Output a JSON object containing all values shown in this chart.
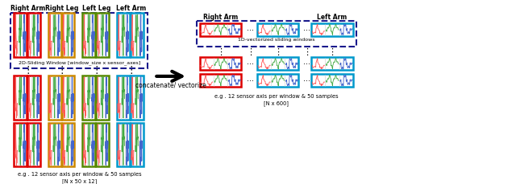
{
  "bg_color": "#ffffff",
  "left_labels": [
    "Right Arm",
    "Right Leg",
    "Left Leg",
    "Left Arm"
  ],
  "right_labels": [
    "Right Arm",
    "Left Arm"
  ],
  "arrow_text": "concatenate/ vectorize",
  "left_note1": "2D-Sliding Window [window_size x sensor_axes]",
  "left_note2": "e.g . 12 sensor axis per window & 50 samples",
  "left_note3": "[N x 50 x 12]",
  "right_note1": "1D-vectorized sliding windows",
  "right_note2": "e.g . 12 sensor axis per window & 50 samples",
  "right_note3": "[N x 600]",
  "group_colors": [
    "#dd0000",
    "#cc8800",
    "#558800",
    "#0099cc"
  ],
  "right_group_colors": [
    "#dd0000",
    "#0099cc"
  ],
  "dashed_border_color": "#1a1a8c",
  "sig_colors": [
    "#ff5555",
    "#44aa44",
    "#4466cc"
  ]
}
